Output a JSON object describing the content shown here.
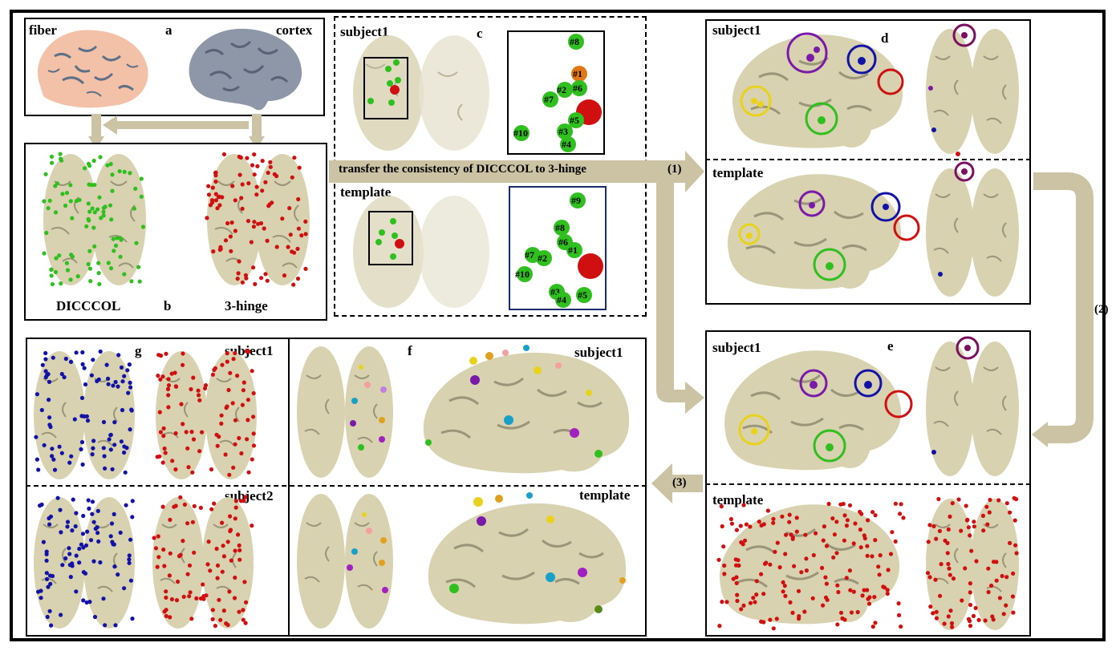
{
  "colors": {
    "cortex": "#d8d2b0",
    "cortex_shadow": "#9b9579",
    "fiber": "#f3c1a7",
    "fiber_shadow": "#5e6f88",
    "gray_cortex": "#8d97a8",
    "arrow": "#cbc3a3",
    "green": "#2fbf1f",
    "red": "#d01010",
    "blue": "#1212a8",
    "purple": "#7a1aa8",
    "yellow": "#e8d21c",
    "dark_purple": "#7a1060"
  },
  "panel_a": {
    "letter": "a",
    "left_label": "fiber",
    "right_label": "cortex"
  },
  "panel_b": {
    "letter": "b",
    "left_label": "DICCCOL",
    "right_label": "3-hinge"
  },
  "panel_c": {
    "letter": "c",
    "top_label": "subject1",
    "bottom_label": "template",
    "top_nodes": [
      "#8",
      "#1",
      "#2",
      "#6",
      "#7",
      "#5",
      "#3",
      "#10",
      "#4"
    ],
    "bottom_nodes": [
      "#9",
      "#8",
      "#6",
      "#1",
      "#7",
      "#2",
      "#10",
      "#3",
      "#4",
      "#5"
    ]
  },
  "arrow_1": {
    "text": "transfer the consistency of  DICCCOL to 3-hinge",
    "marker": "(1)"
  },
  "arrow_2": {
    "marker": "(2)"
  },
  "arrow_3": {
    "marker": "(3)"
  },
  "panel_d": {
    "letter": "d",
    "top_label": "subject1",
    "bottom_label": "template"
  },
  "panel_e": {
    "letter": "e",
    "top_label": "subject1",
    "bottom_label": "template"
  },
  "panel_f": {
    "letter": "f",
    "top_label": "subject1",
    "bottom_label": "template"
  },
  "panel_g": {
    "letter": "g",
    "top_label": "subject1",
    "bottom_label": "subject2"
  }
}
